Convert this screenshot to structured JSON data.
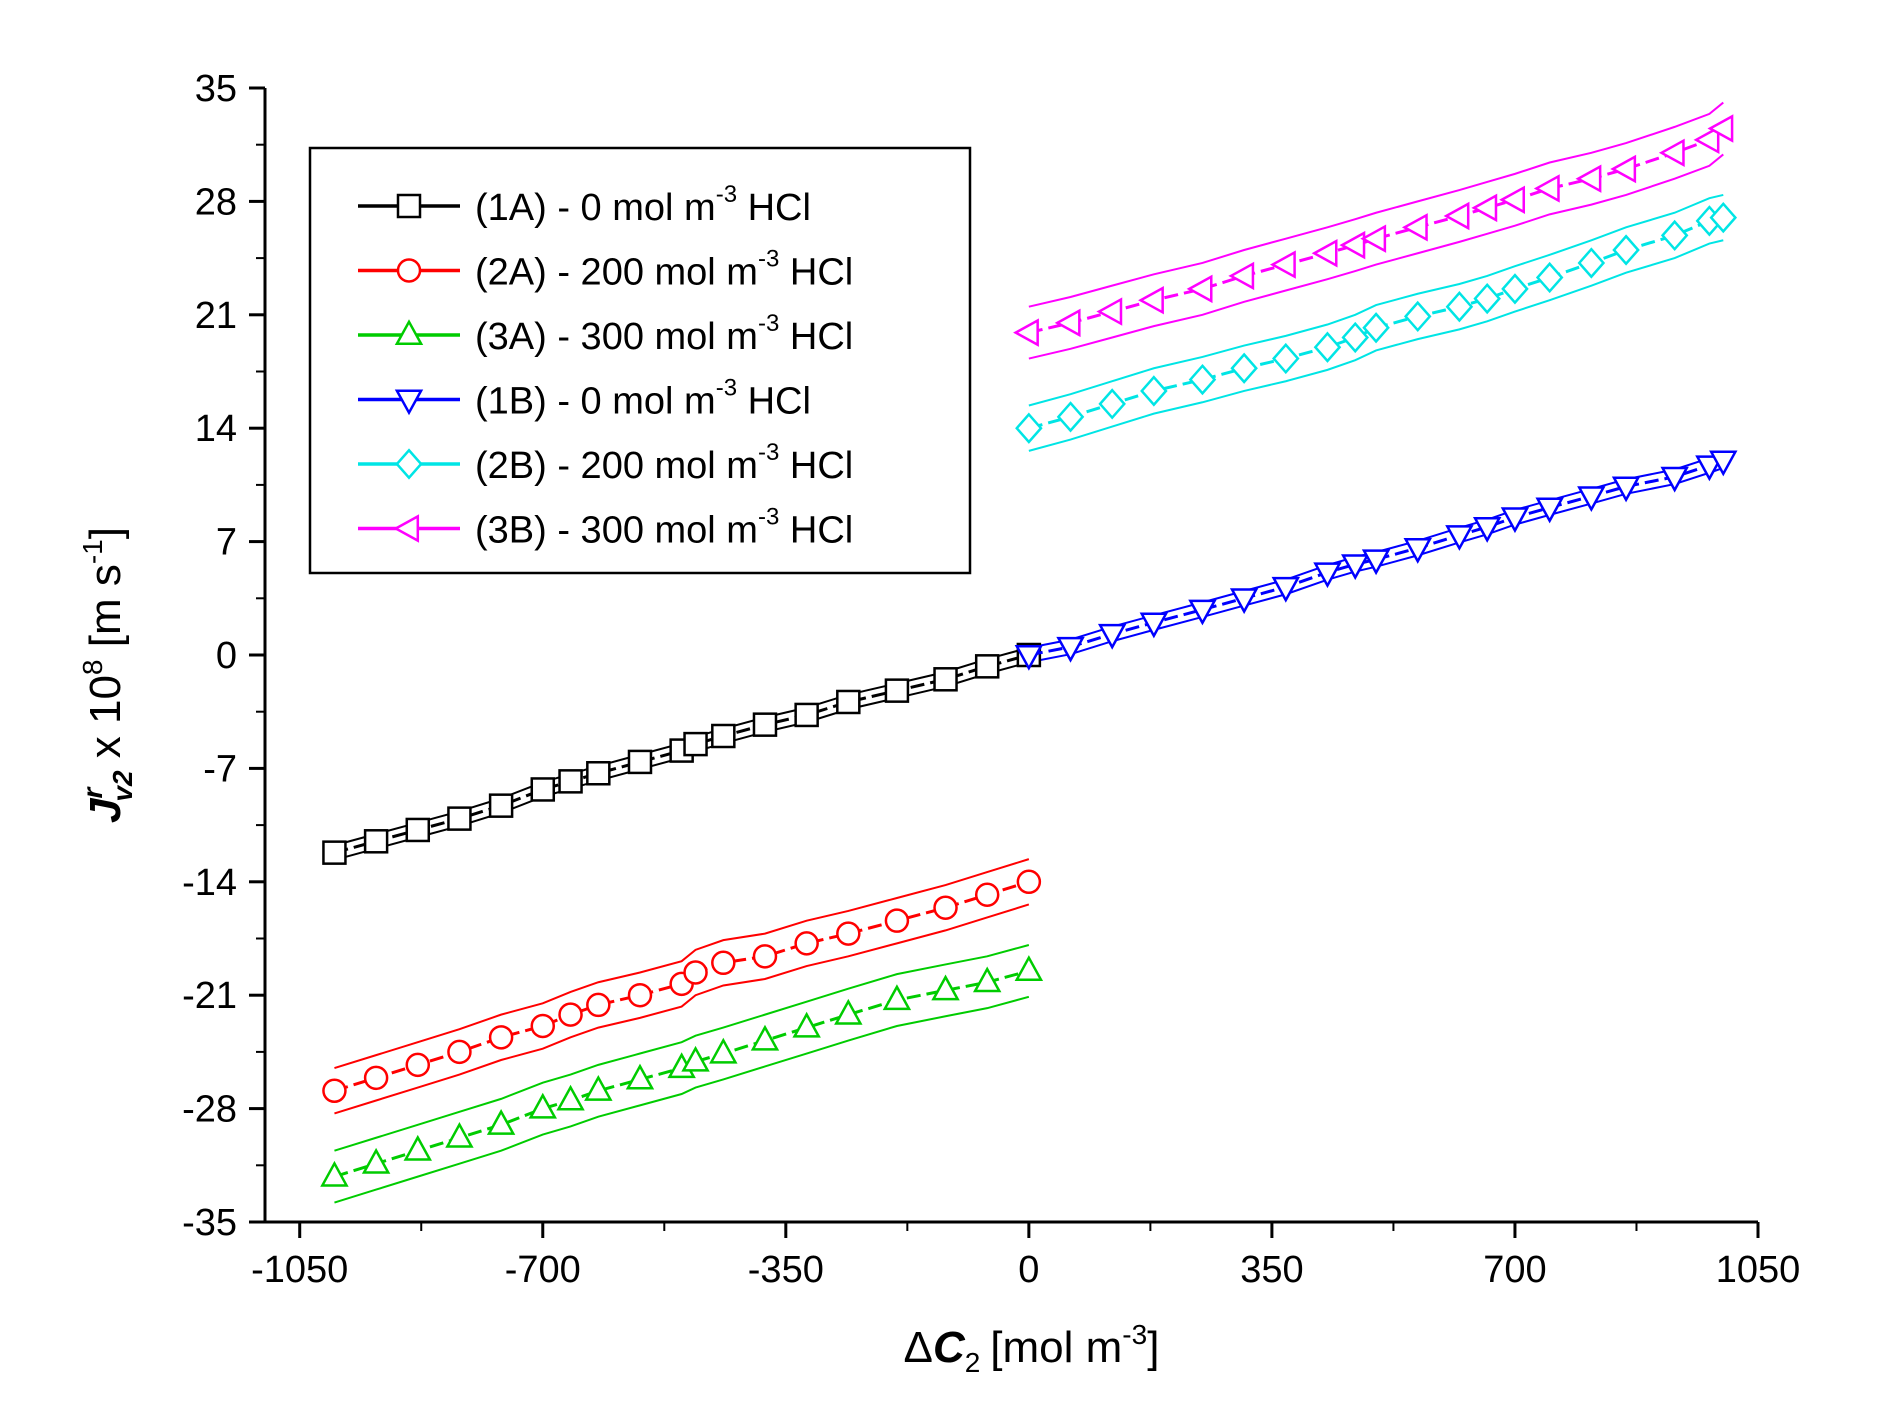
{
  "chart_data": {
    "type": "line",
    "title": "",
    "xlabel": {
      "delta": "Δ",
      "var": "C",
      "sub": "2",
      "unit": "[mol m",
      "sup": "-3",
      "close": "]"
    },
    "ylabel": {
      "var": "J",
      "sup1": "r",
      "sub": "v2",
      "mid": " x 10",
      "sup2": "8",
      "unit": " [m s",
      "sup3": "-1",
      "close": "]"
    },
    "xlim": [
      -1100,
      1050
    ],
    "ylim": [
      -35,
      35
    ],
    "xticks": [
      -1050,
      -700,
      -350,
      0,
      350,
      700,
      1050
    ],
    "xtick_labels": [
      "-1050",
      "-700",
      "-350",
      "0",
      "350",
      "700",
      "1050"
    ],
    "yticks": [
      -35,
      -28,
      -21,
      -14,
      -7,
      0,
      7,
      14,
      21,
      28,
      35
    ],
    "ytick_labels": [
      "-35",
      "-28",
      "-21",
      "-14",
      "-7",
      "0",
      "7",
      "14",
      "21",
      "28",
      "35"
    ],
    "legend_position": "top-left",
    "series": [
      {
        "name": "1A",
        "label_pre": "(1A) - 0 mol m",
        "label_sup": "-3",
        "label_post": " HCl",
        "color": "#000000",
        "marker": "square",
        "x": [
          -1000,
          -940,
          -880,
          -820,
          -760,
          -700,
          -660,
          -620,
          -560,
          -500,
          -480,
          -440,
          -380,
          -320,
          -260,
          -190,
          -120,
          -60,
          0
        ],
        "y": [
          -12.2,
          -11.5,
          -10.8,
          -10.1,
          -9.3,
          -8.3,
          -7.8,
          -7.3,
          -6.6,
          -5.9,
          -5.5,
          -5.0,
          -4.3,
          -3.7,
          -2.9,
          -2.2,
          -1.5,
          -0.7,
          0
        ]
      },
      {
        "name": "2A",
        "label_pre": "(2A) - 200 mol m",
        "label_sup": "-3",
        "label_post": " HCl",
        "color": "#ff0000",
        "marker": "circle",
        "x": [
          -1000,
          -940,
          -880,
          -820,
          -760,
          -700,
          -660,
          -620,
          -560,
          -500,
          -480,
          -440,
          -380,
          -320,
          -260,
          -190,
          -120,
          -60,
          0
        ],
        "y": [
          -26.9,
          -26.1,
          -25.3,
          -24.5,
          -23.6,
          -22.9,
          -22.2,
          -21.6,
          -21.0,
          -20.3,
          -19.6,
          -19.0,
          -18.6,
          -17.8,
          -17.2,
          -16.4,
          -15.6,
          -14.8,
          -14.0
        ]
      },
      {
        "name": "3A",
        "label_pre": "(3A) - 300 mol m",
        "label_sup": "-3",
        "label_post": " HCl",
        "color": "#00cc00",
        "marker": "triangle-up",
        "x": [
          -1000,
          -940,
          -880,
          -820,
          -760,
          -700,
          -660,
          -620,
          -560,
          -500,
          -480,
          -440,
          -380,
          -320,
          -260,
          -190,
          -120,
          -60,
          0
        ],
        "y": [
          -32.2,
          -31.4,
          -30.6,
          -29.8,
          -29.0,
          -28.0,
          -27.5,
          -26.9,
          -26.2,
          -25.5,
          -25.1,
          -24.6,
          -23.8,
          -23.0,
          -22.2,
          -21.3,
          -20.7,
          -20.2,
          -19.5
        ]
      },
      {
        "name": "1B",
        "label_pre": "(1B) - 0 mol m",
        "label_sup": "-3",
        "label_post": " HCl",
        "color": "#0000ff",
        "marker": "triangle-down",
        "x": [
          0,
          60,
          120,
          180,
          250,
          310,
          370,
          430,
          470,
          500,
          560,
          620,
          660,
          700,
          750,
          810,
          860,
          930,
          980,
          1000
        ],
        "y": [
          0,
          0.5,
          1.3,
          2.0,
          2.8,
          3.5,
          4.2,
          5.1,
          5.6,
          5.9,
          6.6,
          7.4,
          7.9,
          8.5,
          9.1,
          9.8,
          10.4,
          11.0,
          11.7,
          12.0
        ]
      },
      {
        "name": "2B",
        "label_pre": "(2B) - 200 mol m",
        "label_sup": "-3",
        "label_post": " HCl",
        "color": "#00e5e5",
        "marker": "diamond",
        "x": [
          0,
          60,
          120,
          180,
          250,
          310,
          370,
          430,
          470,
          500,
          560,
          620,
          660,
          700,
          750,
          810,
          860,
          930,
          980,
          1000
        ],
        "y": [
          14.0,
          14.7,
          15.5,
          16.3,
          17.0,
          17.7,
          18.3,
          19.0,
          19.6,
          20.2,
          20.9,
          21.5,
          22.0,
          22.6,
          23.3,
          24.2,
          25.0,
          25.9,
          26.8,
          27.0
        ]
      },
      {
        "name": "3B",
        "label_pre": "(3B) - 300 mol m",
        "label_sup": "-3",
        "label_post": " HCl",
        "color": "#ff00ff",
        "marker": "triangle-left",
        "x": [
          0,
          60,
          120,
          180,
          250,
          310,
          370,
          430,
          470,
          500,
          560,
          620,
          660,
          700,
          750,
          810,
          860,
          930,
          980,
          1000
        ],
        "y": [
          19.9,
          20.5,
          21.2,
          21.9,
          22.6,
          23.4,
          24.1,
          24.8,
          25.3,
          25.7,
          26.4,
          27.1,
          27.6,
          28.1,
          28.8,
          29.4,
          30.0,
          31.0,
          31.8,
          32.5
        ]
      }
    ]
  }
}
